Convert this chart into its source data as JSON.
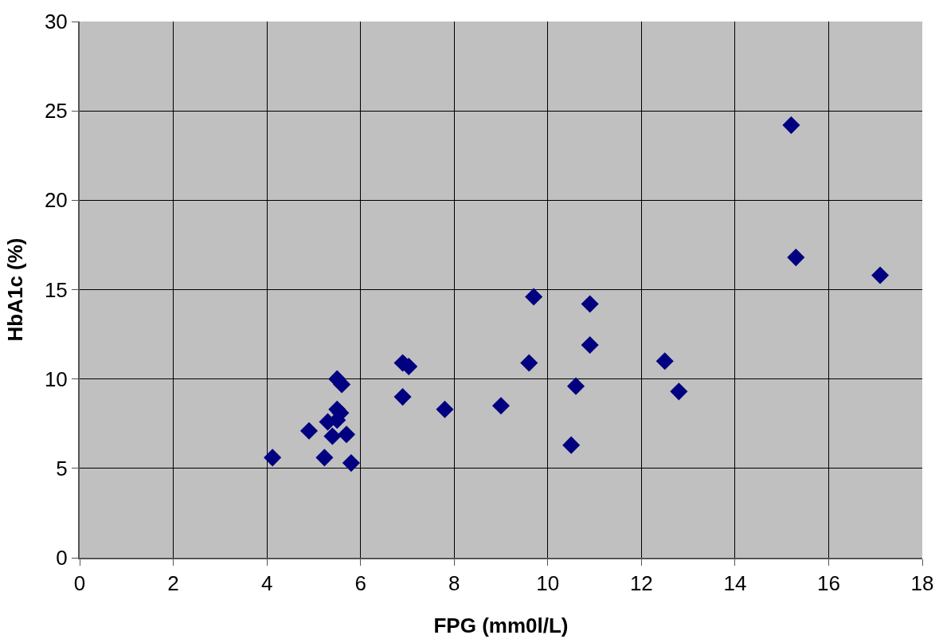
{
  "chart_data": {
    "type": "scatter",
    "xlabel": "FPG (mm0l/L)",
    "ylabel": "HbA1c (%)",
    "x": [
      4.12,
      4.9,
      5.23,
      5.3,
      5.4,
      5.8,
      5.7,
      5.5,
      5.6,
      5.5,
      5.57,
      5.5,
      6.9,
      7.03,
      6.9,
      7.8,
      9.0,
      9.6,
      9.7,
      10.5,
      10.6,
      10.9,
      10.9,
      12.5,
      12.8,
      15.2,
      15.3,
      17.1
    ],
    "series": [
      {
        "color": "#000080",
        "values": [
          5.6,
          7.1,
          5.6,
          7.6,
          6.8,
          5.3,
          6.9,
          10.0,
          9.7,
          8.3,
          8.1,
          7.7,
          10.9,
          10.7,
          9.0,
          8.3,
          8.5,
          10.9,
          14.6,
          6.3,
          9.6,
          14.2,
          11.9,
          11.0,
          9.3,
          24.2,
          16.8,
          15.8
        ]
      }
    ],
    "xlim": [
      0,
      18
    ],
    "xticks": [
      0,
      2,
      4,
      6,
      8,
      10,
      12,
      14,
      16,
      18
    ],
    "ylim": [
      0,
      30
    ],
    "yticks": [
      0,
      5,
      10,
      15,
      20,
      25,
      30
    ],
    "grid": true,
    "marker": "diamond"
  }
}
